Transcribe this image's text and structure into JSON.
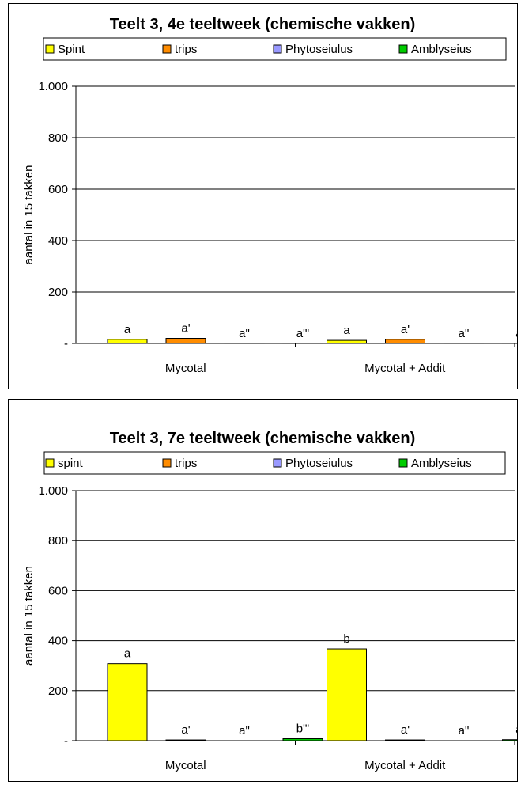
{
  "colors": {
    "spint": "#FFFF00",
    "trips": "#FF8C00",
    "phytoseiulus": "#9999FF",
    "amblyseius": "#00CC00",
    "grid": "#000000"
  },
  "chart_data": [
    {
      "type": "bar",
      "title": "Teelt 3, 4e teeltweek (chemische vakken)",
      "ylabel": "aantal in 15 takken",
      "ylim": [
        0,
        1000
      ],
      "yticks": [
        0,
        200,
        400,
        600,
        800,
        1000
      ],
      "ytick_labels": [
        "-",
        "200",
        "400",
        "600",
        "800",
        "1.000"
      ],
      "legend_position": "top",
      "categories": [
        "Mycotal",
        "Mycotal + Addit"
      ],
      "series": [
        {
          "name": "Spint",
          "color": "#FFFF00",
          "values": [
            16,
            12
          ],
          "labels": [
            "a",
            "a"
          ]
        },
        {
          "name": "trips",
          "color": "#FF8C00",
          "values": [
            20,
            16
          ],
          "labels": [
            "a'",
            "a'"
          ]
        },
        {
          "name": "Phytoseiulus",
          "color": "#9999FF",
          "values": [
            0,
            0
          ],
          "labels": [
            "a\"",
            "a\""
          ]
        },
        {
          "name": "Amblyseius",
          "color": "#00CC00",
          "values": [
            0,
            0
          ],
          "labels": [
            "a\"'",
            "a\"'"
          ]
        }
      ]
    },
    {
      "type": "bar",
      "title": "Teelt 3, 7e teeltweek (chemische vakken)",
      "ylabel": "aantal in 15 takken",
      "ylim": [
        0,
        1000
      ],
      "yticks": [
        0,
        200,
        400,
        600,
        800,
        1000
      ],
      "ytick_labels": [
        "-",
        "200",
        "400",
        "600",
        "800",
        "1.000"
      ],
      "legend_position": "top",
      "categories": [
        "Mycotal",
        "Mycotal + Addit"
      ],
      "series": [
        {
          "name": "spint",
          "color": "#FFFF00",
          "values": [
            308,
            367
          ],
          "labels": [
            "a",
            "b"
          ]
        },
        {
          "name": "trips",
          "color": "#FF8C00",
          "values": [
            3,
            3
          ],
          "labels": [
            "a'",
            "a'"
          ]
        },
        {
          "name": "Phytoseiulus",
          "color": "#9999FF",
          "values": [
            0,
            0
          ],
          "labels": [
            "a\"",
            "a\""
          ]
        },
        {
          "name": "Amblyseius",
          "color": "#00CC00",
          "values": [
            8,
            4
          ],
          "labels": [
            "b\"'",
            "a\"'"
          ]
        }
      ]
    }
  ]
}
